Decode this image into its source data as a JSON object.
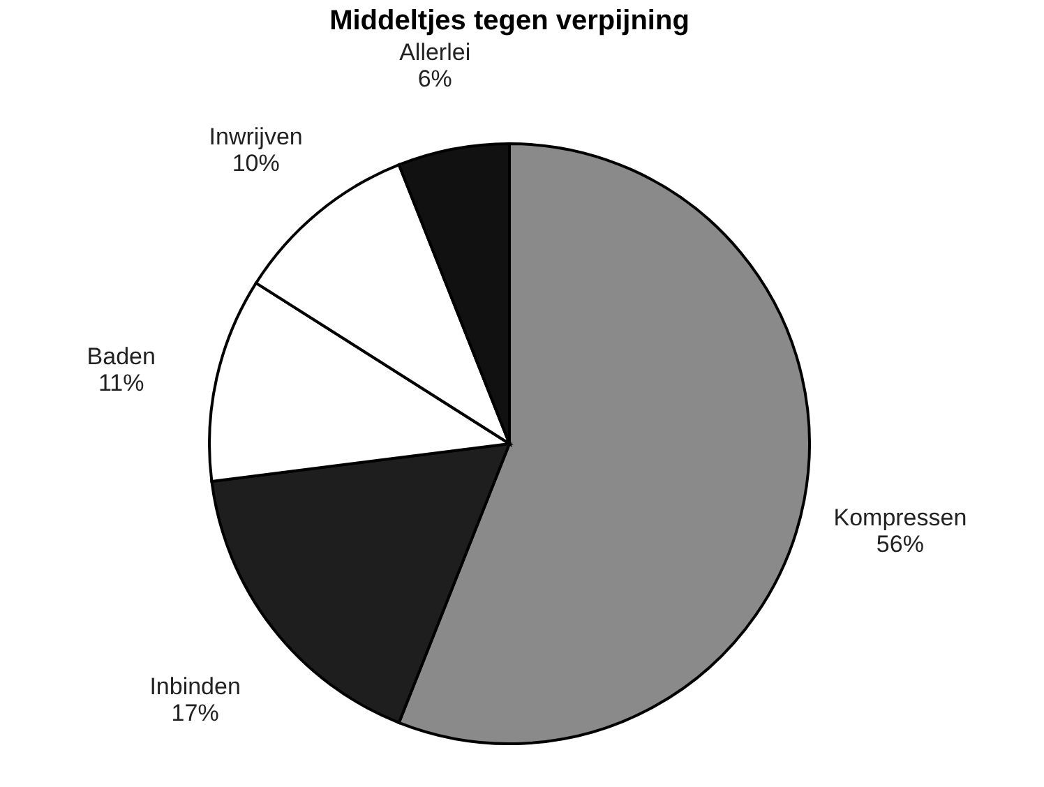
{
  "chart_data": {
    "type": "pie",
    "title": "Middeltjes tegen verpijning",
    "categories": [
      "Kompressen",
      "Inbinden",
      "Baden",
      "Inwrijven",
      "Allerlei"
    ],
    "values": [
      56,
      17,
      11,
      10,
      6
    ],
    "value_labels": [
      "56%",
      "17%",
      "11%",
      "10%",
      "6%"
    ],
    "colors": [
      "#8a8a8a",
      "#1e1e1e",
      "#ffffff",
      "#ffffff",
      "#111111"
    ],
    "legend": false
  }
}
